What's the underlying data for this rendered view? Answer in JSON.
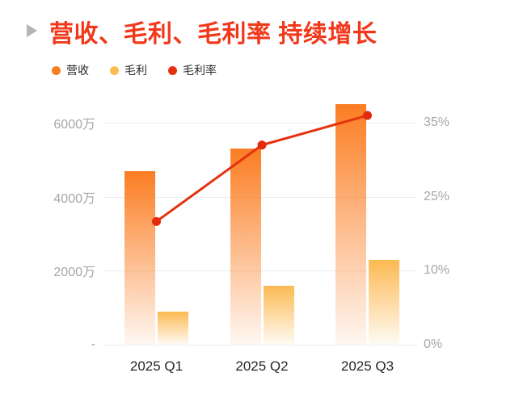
{
  "title": {
    "text": "营收、毛利、毛利率 持续增长"
  },
  "legend": {
    "items": [
      {
        "label": "营收",
        "color": "#fb7d22"
      },
      {
        "label": "毛利",
        "color": "#fcba52"
      },
      {
        "label": "毛利率",
        "color": "#e5310f"
      }
    ]
  },
  "chart_data": {
    "type": "bar+line combo",
    "title": "营收、毛利、毛利率 持续增长",
    "categories": [
      "2025 Q1",
      "2025 Q2",
      "2025 Q3"
    ],
    "series": [
      {
        "name": "营收",
        "type": "bar",
        "yaxis": "left",
        "unit": "万",
        "values": [
          4700,
          5300,
          6500
        ],
        "color": "#fb7d22",
        "gradient_fade": true
      },
      {
        "name": "毛利",
        "type": "bar",
        "yaxis": "left",
        "unit": "万",
        "values": [
          900,
          1600,
          2300
        ],
        "color": "#fcba52",
        "gradient_fade": true
      },
      {
        "name": "毛利率",
        "type": "line",
        "yaxis": "right",
        "unit": "%",
        "values": [
          20,
          32,
          36
        ],
        "color": "#e5310f",
        "dot_color": "#e32a0e"
      }
    ],
    "left_axis": {
      "tick_labels": [
        "-",
        "2000万",
        "4000万",
        "6000万"
      ],
      "tick_values": [
        0,
        2000,
        4000,
        6000
      ]
    },
    "right_axis": {
      "tick_labels": [
        "0%",
        "10%",
        "25%",
        "35%"
      ],
      "tick_values": [
        0,
        10,
        25,
        35
      ]
    },
    "grid": true,
    "legend_position": "top-left",
    "background": "#ffffff"
  },
  "colors": {
    "title": "#f2381b",
    "bullet": "#b5b5b5",
    "grid_line": "#ececec",
    "axis_label": "#a6a6a6",
    "x_label": "#262626"
  }
}
